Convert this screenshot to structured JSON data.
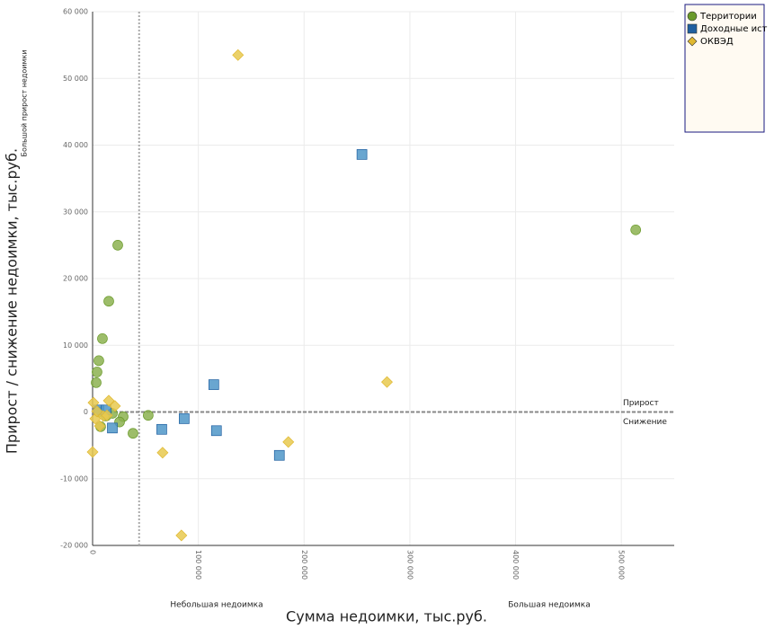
{
  "chart_data": {
    "type": "scatter",
    "title": "Большой прирост недоимки",
    "x_label": "Сумма недоимки, тыс.руб.",
    "y_label": "Прирост / снижение недоимки, тыс.руб.",
    "annotations": {
      "growth": "Прирост",
      "decline": "Снижение",
      "small_debt": "Небольшая недоимка",
      "large_debt": "Большая недоимка"
    },
    "reference_x": 44000,
    "reference_y": 0,
    "xlim": [
      0,
      550000
    ],
    "xticks": [
      {
        "value": 0,
        "label": "0"
      },
      {
        "value": 100000,
        "label": "100 000"
      },
      {
        "value": 200000,
        "label": "200 000"
      },
      {
        "value": 300000,
        "label": "300 000"
      },
      {
        "value": 400000,
        "label": "400 000"
      },
      {
        "value": 500000,
        "label": "500 000"
      }
    ],
    "ylim": [
      -20000,
      60000
    ],
    "yticks": [
      {
        "value": -20000,
        "label": "-20 000"
      },
      {
        "value": -10000,
        "label": "-10 000"
      },
      {
        "value": 0,
        "label": "0"
      },
      {
        "value": 10000,
        "label": "10 000"
      },
      {
        "value": 20000,
        "label": "20 000"
      },
      {
        "value": 30000,
        "label": "30 000"
      },
      {
        "value": 40000,
        "label": "40 000"
      },
      {
        "value": 50000,
        "label": "50 000"
      },
      {
        "value": 60000,
        "label": "60 000"
      }
    ],
    "grid": true,
    "series": [
      {
        "name": "Территории",
        "marker": "circle",
        "color": "#8cb150",
        "legend_color": "#6a9a2a",
        "x": [
          23800,
          15300,
          9300,
          5900,
          4200,
          3400,
          513600,
          52600,
          38200,
          28900,
          25500,
          7600,
          5900,
          12700,
          18700
        ],
        "values": [
          25000,
          16600,
          11000,
          7700,
          6000,
          4400,
          27300,
          -500,
          -3200,
          -700,
          -1500,
          -2200,
          0,
          -600,
          -200
        ]
      },
      {
        "name": "Доходные ист",
        "marker": "square",
        "color": "#4f97c8",
        "legend_color": "#1f5fa0",
        "x": [
          254700,
          114600,
          65400,
          86600,
          117100,
          176600,
          18700,
          5900,
          12700
        ],
        "values": [
          38600,
          4100,
          -2600,
          -1000,
          -2800,
          -6500,
          -2400,
          300,
          300
        ]
      },
      {
        "name": "ОКВЭД",
        "marker": "diamond",
        "color": "#e8c94f",
        "legend_color": "#e0b830",
        "x": [
          137500,
          278400,
          185100,
          66200,
          84000,
          0,
          800,
          15300,
          21200,
          2500,
          6800,
          10200,
          13600,
          4200
        ],
        "values": [
          53500,
          4500,
          -4500,
          -6100,
          -18500,
          -6000,
          1400,
          1700,
          900,
          -1000,
          -2100,
          -600,
          -500,
          100
        ]
      }
    ]
  }
}
